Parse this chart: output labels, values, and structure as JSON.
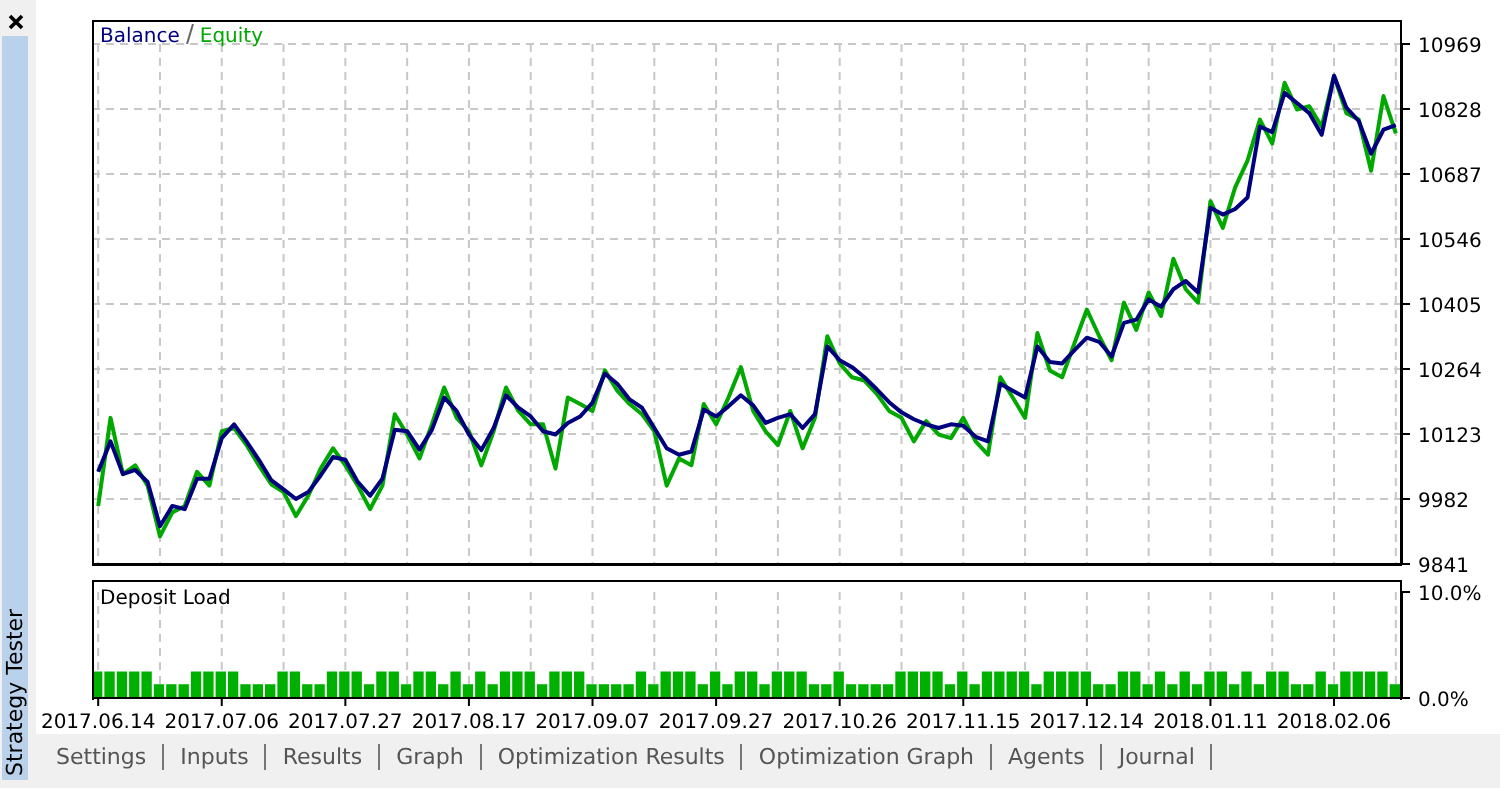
{
  "chart_data": [
    {
      "type": "line",
      "categories": [
        "2017.06.14",
        null,
        null,
        null,
        null,
        null,
        null,
        null,
        null,
        null,
        "2017.07.06",
        null,
        null,
        null,
        null,
        null,
        null,
        null,
        null,
        null,
        "2017.07.27",
        null,
        null,
        null,
        null,
        null,
        null,
        null,
        null,
        null,
        "2017.08.17",
        null,
        null,
        null,
        null,
        null,
        null,
        null,
        null,
        null,
        "2017.09.07",
        null,
        null,
        null,
        null,
        null,
        null,
        null,
        null,
        null,
        "2017.09.27",
        null,
        null,
        null,
        null,
        null,
        null,
        null,
        null,
        null,
        "2017.10.26",
        null,
        null,
        null,
        null,
        null,
        null,
        null,
        null,
        null,
        "2017.11.15",
        null,
        null,
        null,
        null,
        null,
        null,
        null,
        null,
        null,
        "2017.12.14",
        null,
        null,
        null,
        null,
        null,
        null,
        null,
        null,
        null,
        "2018.01.11",
        null,
        null,
        null,
        null,
        null,
        null,
        null,
        null,
        null,
        "2018.02.06",
        null,
        null,
        null,
        null,
        null
      ],
      "series": [
        {
          "name": "Balance",
          "color": "#00007f",
          "values": [
            10041,
            10107,
            10036,
            10045,
            10019,
            9923,
            9967,
            9960,
            10026,
            10026,
            10114,
            10144,
            10107,
            10067,
            10023,
            10003,
            9982,
            9997,
            10033,
            10073,
            10067,
            10019,
            9989,
            10026,
            10132,
            10129,
            10089,
            10132,
            10202,
            10173,
            10122,
            10088,
            10136,
            10207,
            10180,
            10161,
            10129,
            10122,
            10147,
            10161,
            10191,
            10254,
            10232,
            10198,
            10180,
            10136,
            10092,
            10078,
            10085,
            10176,
            10161,
            10183,
            10207,
            10185,
            10147,
            10158,
            10166,
            10136,
            10166,
            10313,
            10283,
            10268,
            10246,
            10220,
            10192,
            10170,
            10155,
            10144,
            10136,
            10144,
            10141,
            10117,
            10107,
            10232,
            10217,
            10202,
            10313,
            10279,
            10276,
            10305,
            10332,
            10323,
            10291,
            10364,
            10371,
            10415,
            10399,
            10437,
            10455,
            10430,
            10614,
            10599,
            10611,
            10636,
            10790,
            10778,
            10863,
            10841,
            10819,
            10772,
            10900,
            10831,
            10802,
            10731,
            10783,
            10793
          ]
        },
        {
          "name": "Equity",
          "color": "#00a800",
          "values": [
            9967,
            10158,
            10036,
            10055,
            10011,
            9901,
            9953,
            9967,
            10041,
            10011,
            10129,
            10136,
            10099,
            10055,
            10014,
            9997,
            9945,
            9989,
            10048,
            10092,
            10055,
            10011,
            9960,
            10011,
            10166,
            10122,
            10070,
            10144,
            10224,
            10158,
            10129,
            10055,
            10129,
            10224,
            10173,
            10144,
            10144,
            10048,
            10202,
            10188,
            10173,
            10261,
            10217,
            10188,
            10166,
            10129,
            10011,
            10070,
            10055,
            10188,
            10144,
            10202,
            10268,
            10173,
            10129,
            10099,
            10173,
            10092,
            10158,
            10335,
            10276,
            10246,
            10239,
            10210,
            10173,
            10158,
            10107,
            10151,
            10122,
            10114,
            10158,
            10107,
            10078,
            10246,
            10202,
            10158,
            10342,
            10261,
            10246,
            10320,
            10393,
            10335,
            10283,
            10408,
            10349,
            10430,
            10379,
            10503,
            10437,
            10408,
            10628,
            10570,
            10658,
            10716,
            10805,
            10753,
            10885,
            10827,
            10834,
            10790,
            10900,
            10819,
            10805,
            10694,
            10856,
            10775
          ]
        }
      ],
      "ylim": [
        9841,
        10969
      ],
      "yticks": [
        9841,
        9982,
        10123,
        10264,
        10405,
        10546,
        10687,
        10828,
        10969
      ],
      "grid": true,
      "legend": "top left",
      "marker": "none",
      "line_style": "solid",
      "tick_labels": "y"
    },
    {
      "type": "bar",
      "title": "Deposit Load",
      "categories": [
        "2017.06.14",
        null,
        null,
        null,
        null,
        null,
        null,
        null,
        null,
        null,
        "2017.07.06",
        null,
        null,
        null,
        null,
        null,
        null,
        null,
        null,
        null,
        "2017.07.27",
        null,
        null,
        null,
        null,
        null,
        null,
        null,
        null,
        null,
        "2017.08.17",
        null,
        null,
        null,
        null,
        null,
        null,
        null,
        null,
        null,
        "2017.09.07",
        null,
        null,
        null,
        null,
        null,
        null,
        null,
        null,
        null,
        "2017.09.27",
        null,
        null,
        null,
        null,
        null,
        null,
        null,
        null,
        null,
        "2017.10.26",
        null,
        null,
        null,
        null,
        null,
        null,
        null,
        null,
        null,
        "2017.11.15",
        null,
        null,
        null,
        null,
        null,
        null,
        null,
        null,
        null,
        "2017.12.14",
        null,
        null,
        null,
        null,
        null,
        null,
        null,
        null,
        null,
        "2018.01.11",
        null,
        null,
        null,
        null,
        null,
        null,
        null,
        null,
        null,
        "2018.02.06",
        null,
        null,
        null,
        null,
        null
      ],
      "color": "#00b000",
      "values": [
        2.5,
        2.5,
        2.5,
        2.5,
        2.5,
        1.3,
        1.3,
        1.3,
        2.5,
        2.5,
        2.5,
        2.5,
        1.3,
        1.3,
        1.3,
        2.5,
        2.5,
        1.3,
        1.3,
        2.5,
        2.5,
        2.5,
        1.3,
        2.5,
        2.5,
        1.3,
        2.5,
        2.5,
        1.3,
        2.5,
        1.3,
        2.5,
        1.3,
        2.5,
        2.5,
        2.5,
        1.3,
        2.5,
        2.5,
        2.5,
        1.3,
        1.3,
        1.3,
        1.3,
        2.5,
        1.3,
        2.5,
        2.5,
        2.5,
        1.3,
        2.5,
        1.3,
        2.5,
        2.5,
        1.3,
        2.5,
        2.5,
        2.5,
        1.3,
        1.3,
        2.5,
        1.3,
        1.3,
        1.3,
        1.3,
        2.5,
        2.5,
        2.5,
        2.5,
        1.3,
        2.5,
        1.3,
        2.5,
        2.5,
        2.5,
        2.5,
        1.3,
        2.5,
        2.5,
        2.5,
        2.5,
        1.3,
        1.3,
        2.5,
        2.5,
        1.3,
        2.5,
        1.3,
        2.5,
        1.3,
        2.5,
        2.5,
        1.3,
        2.5,
        1.3,
        2.5,
        2.5,
        1.3,
        1.3,
        2.5,
        1.3,
        2.5,
        2.5,
        2.5,
        2.5,
        1.3
      ],
      "ylim": [
        0,
        10
      ],
      "yticks": [
        {
          "value": 10,
          "label": "10.0%"
        },
        {
          "value": 0,
          "label": "0.0%"
        }
      ],
      "grid": "x",
      "annotations": [
        "Strategy Tester",
        "Settings",
        "Inputs",
        "Results",
        "Graph",
        "Optimization Results",
        "Optimization Graph",
        "Agents",
        "Journal"
      ]
    }
  ]
}
